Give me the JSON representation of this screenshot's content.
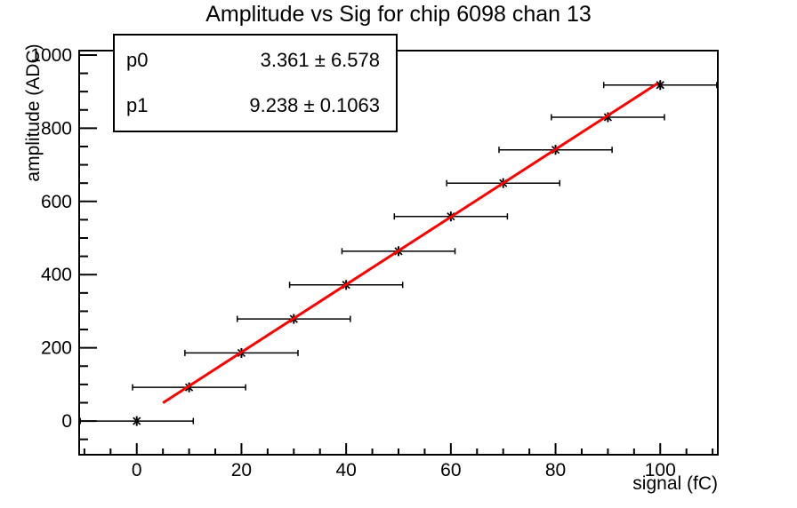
{
  "chart_data": {
    "type": "scatter",
    "title": "Amplitude vs Sig for chip 6098 chan 13",
    "xlabel": "signal (fC)",
    "ylabel": "amplitude (ADC)",
    "xlim": [
      -11,
      111
    ],
    "ylim": [
      -92,
      1012
    ],
    "x_major_ticks": [
      0,
      20,
      40,
      60,
      80,
      100
    ],
    "x_minor_step": 5,
    "y_major_ticks": [
      0,
      200,
      400,
      600,
      800,
      1000
    ],
    "y_minor_step": 50,
    "grid": false,
    "legend_position": "none",
    "points": {
      "x": [
        0,
        10,
        20,
        30,
        40,
        50,
        60,
        70,
        80,
        90,
        100
      ],
      "y": [
        0,
        92,
        186,
        279,
        372,
        464,
        559,
        650,
        741,
        830,
        918
      ],
      "x_err": 1.5,
      "marker": "asterisk",
      "marker_color": "#000000"
    },
    "fit": {
      "p0": 3.361,
      "p1": 9.238,
      "x_range": [
        5,
        99.5
      ],
      "color": "#ff0000"
    },
    "stats_box": {
      "rows": [
        {
          "name": "p0",
          "value": "3.361 ± 6.578"
        },
        {
          "name": "p1",
          "value": "9.238 ± 0.1063"
        }
      ]
    }
  }
}
